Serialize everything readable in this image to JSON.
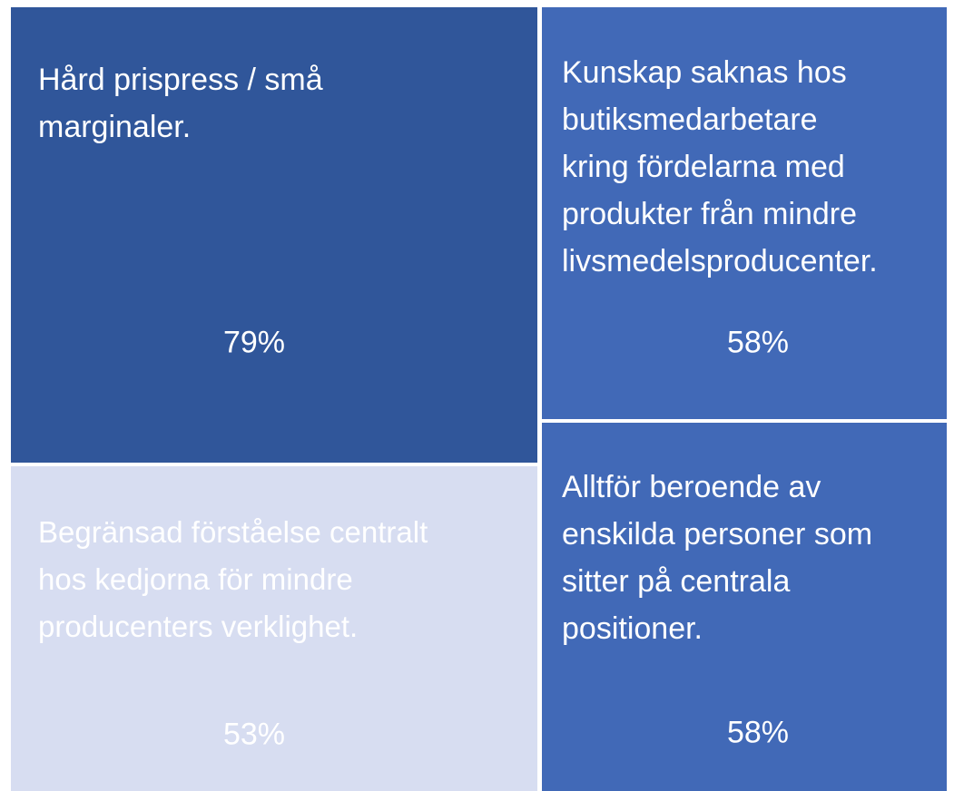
{
  "tiles": [
    {
      "lines": [
        "Hård prispress / små",
        "marginaler."
      ],
      "value": "79%"
    },
    {
      "lines": [
        "Kunskap saknas hos",
        "butiksmedarbetare",
        "kring fördelarna med",
        "produkter från mindre",
        "livsmedelsproducenter."
      ],
      "value": "58%"
    },
    {
      "lines": [
        "Begränsad förståelse centralt",
        "hos kedjorna för mindre",
        "producenters verklighet."
      ],
      "value": "53%"
    },
    {
      "lines": [
        "Alltför beroende av",
        "enskilda personer som",
        "sitter på centrala",
        "positioner."
      ],
      "value": "58%"
    }
  ]
}
